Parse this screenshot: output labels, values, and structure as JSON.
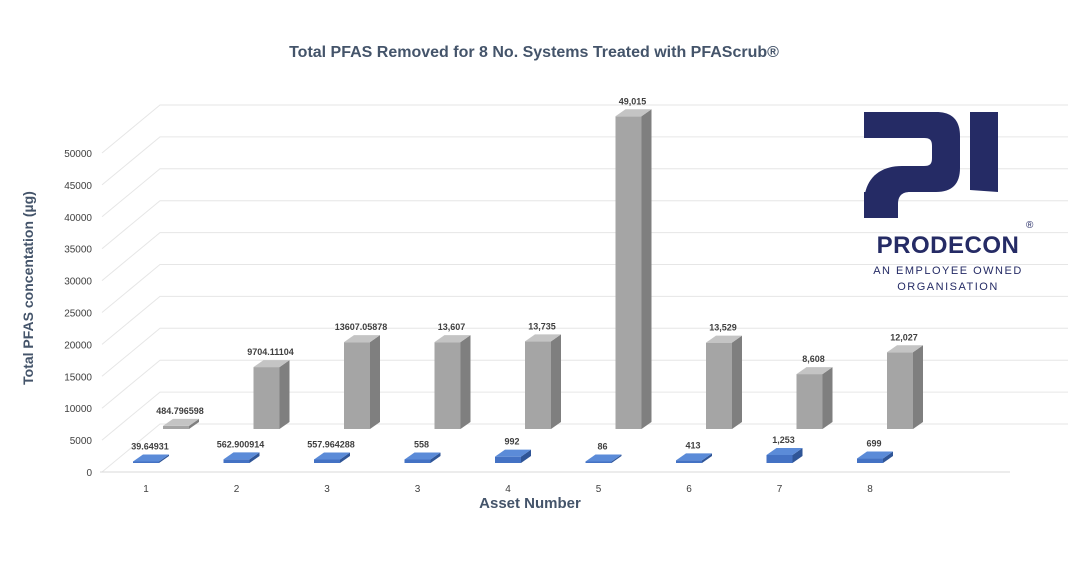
{
  "chart_data": {
    "type": "bar",
    "title": "Total PFAS Removed for 8 No. Systems Treated with PFAScrub®",
    "xlabel": "Asset Number",
    "ylabel": "Total PFAS concentation (µg)",
    "ylim": [
      0,
      50000
    ],
    "yticks": [
      "0",
      "5000",
      "10000",
      "15000",
      "20000",
      "25000",
      "30000",
      "35000",
      "40000",
      "45000",
      "50000"
    ],
    "categories": [
      "1",
      "2",
      "3",
      "3",
      "4",
      "5",
      "6",
      "7",
      "8"
    ],
    "grid": true,
    "legend": "none",
    "style": "3d-column",
    "series": [
      {
        "color": "#4472c4",
        "values": [
          39.64931,
          562.900914,
          557.964288,
          558,
          992,
          86,
          413,
          1253,
          699
        ],
        "labels": [
          "39.64931",
          "562.900914",
          "557.964288",
          "558",
          "992",
          "86",
          "413",
          "1,253",
          "699"
        ]
      },
      {
        "color": "#a5a5a5",
        "values": [
          484.796598,
          9704.11104,
          13607.05878,
          13607,
          13735,
          49015,
          13529,
          8608,
          12027
        ],
        "labels": [
          "484.796598",
          "9704.11104",
          "13607.05878",
          "13,607",
          "13,735",
          "49,015",
          "13,529",
          "8,608",
          "12,027"
        ]
      }
    ]
  },
  "logo": {
    "name": "PRODECON",
    "tagline_line1": "AN EMPLOYEE OWNED",
    "tagline_line2": "ORGANISATION",
    "registered_mark": "®",
    "color": "#252b65"
  }
}
